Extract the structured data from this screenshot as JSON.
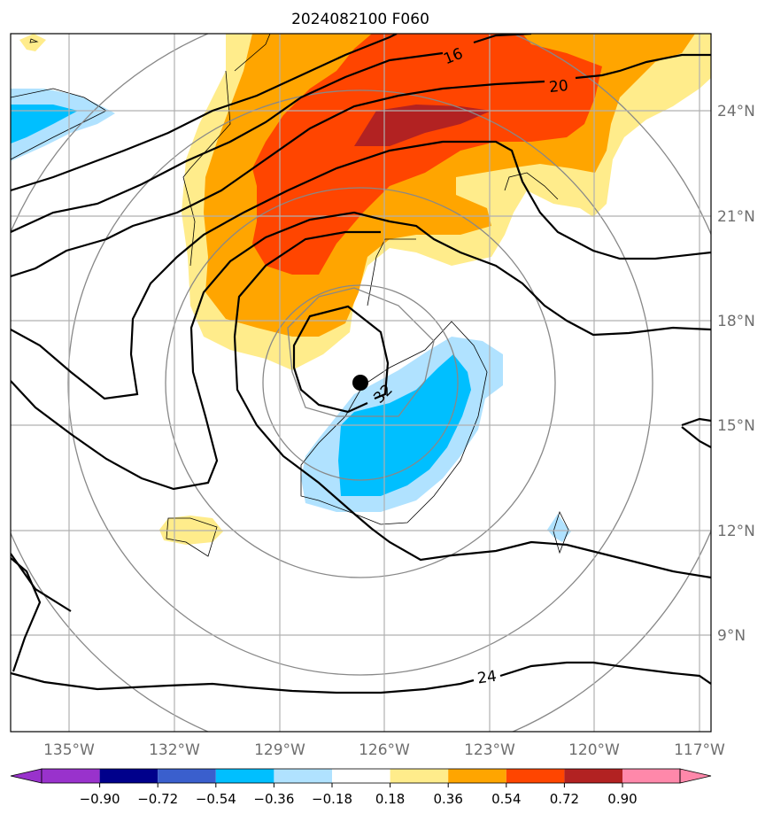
{
  "chart_data": {
    "type": "heatmap",
    "title": "2024082100 F060",
    "map": {
      "lon_range": [
        -136.7,
        -116.7
      ],
      "lat_range": [
        6.8,
        26.8
      ],
      "lon_ticks": [
        -135,
        -132,
        -129,
        -126,
        -123,
        -120,
        -117
      ],
      "lon_tick_labels": [
        "135°W",
        "132°W",
        "129°W",
        "126°W",
        "123°W",
        "120°W",
        "117°W"
      ],
      "lat_ticks": [
        9,
        12,
        15,
        18,
        21,
        24
      ],
      "lat_tick_labels": [
        "9°N",
        "12°N",
        "15°N",
        "18°N",
        "21°N",
        "24°N"
      ],
      "grid": true
    },
    "colorbar": {
      "ticks": [
        -0.9,
        -0.72,
        -0.54,
        -0.36,
        -0.18,
        0.18,
        0.36,
        0.54,
        0.72,
        0.9
      ],
      "tick_labels": [
        "−0.90",
        "−0.72",
        "−0.54",
        "−0.36",
        "−0.18",
        "0.18",
        "0.36",
        "0.54",
        "0.72",
        "0.90"
      ],
      "colors": [
        "#9932cc",
        "#00008b",
        "#3a5fcd",
        "#00bfff",
        "#b0e2ff",
        "#ffffff",
        "#ffec8b",
        "#ffa500",
        "#ff4500",
        "#b22222",
        "#ff88aa"
      ],
      "extend": "both"
    },
    "contour_labels": [
      "16",
      "20",
      "24",
      "32"
    ],
    "storm_center": {
      "lon": -126.7,
      "lat": 16.2
    }
  }
}
